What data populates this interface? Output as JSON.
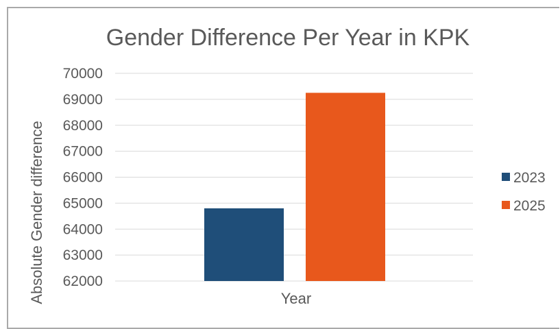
{
  "chart_data": {
    "type": "bar",
    "title": "Gender Difference Per Year in KPK",
    "xlabel": "Year",
    "ylabel": "Absolute Gender difference",
    "categories": [
      "Year"
    ],
    "series": [
      {
        "name": "2023",
        "values": [
          64800
        ],
        "color": "#1f4e79"
      },
      {
        "name": "2025",
        "values": [
          69250
        ],
        "color": "#e8581c"
      }
    ],
    "ylim": [
      62000,
      70000
    ],
    "yticks": [
      "70000",
      "69000",
      "68000",
      "67000",
      "66000",
      "65000",
      "64000",
      "63000",
      "62000"
    ],
    "grid": true,
    "legend_position": "right"
  }
}
